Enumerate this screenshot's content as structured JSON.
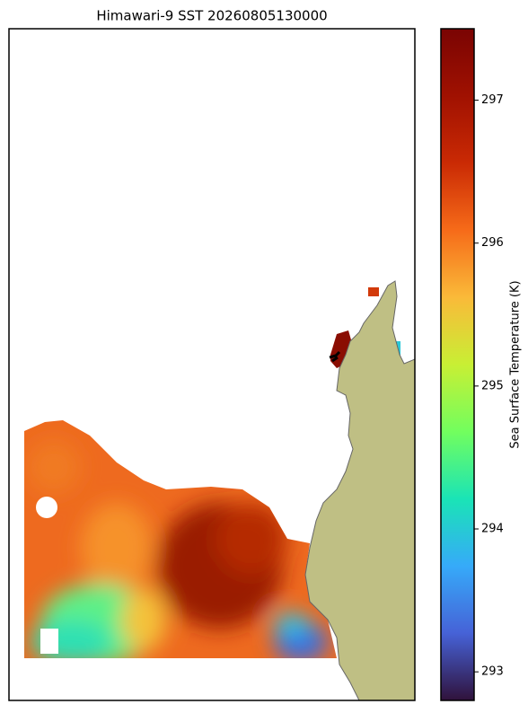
{
  "map": {
    "title": "Himawari-9 SST 20260805130000",
    "colorbar": {
      "label": "Sea Surface Temperature (K)",
      "colormap": "turbo",
      "lim": [
        292.8,
        297.5
      ],
      "ticks": [
        293,
        294,
        295,
        296,
        297
      ]
    }
  }
}
